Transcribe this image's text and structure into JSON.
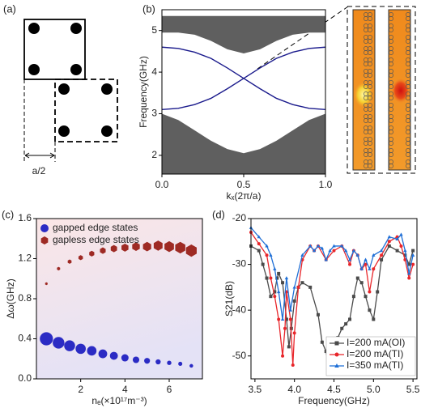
{
  "schematic": {
    "panel_label": "(a)",
    "label": "a/2"
  },
  "chart_data": [
    {
      "type": "band",
      "panel_label": "(b)",
      "xlabel": "kₓ(2π/a)",
      "ylabel": "Frequency(GHz)",
      "xlim": [
        0,
        1
      ],
      "ylim": [
        1.55,
        5.5
      ],
      "xticks": [
        {
          "value": 0,
          "label": "0.0"
        },
        0.5,
        {
          "value": 1,
          "label": "1.0"
        }
      ],
      "yticks": [
        2,
        3,
        4,
        5
      ],
      "x": [
        0,
        0.1,
        0.2,
        0.3,
        0.4,
        0.5,
        0.6,
        0.7,
        0.8,
        0.9,
        1
      ],
      "areas": [
        {
          "color": "#5f5f5f",
          "lower": [
            1.55,
            1.55,
            1.55,
            1.55,
            1.55,
            1.55,
            1.55,
            1.55,
            1.55,
            1.55,
            1.55
          ],
          "upper": [
            3.0,
            2.85,
            2.6,
            2.35,
            2.15,
            2.05,
            2.15,
            2.35,
            2.6,
            2.85,
            3.0
          ]
        },
        {
          "color": "#5f5f5f",
          "lower": [
            4.95,
            4.95,
            4.9,
            4.75,
            4.55,
            4.45,
            4.55,
            4.75,
            4.9,
            4.95,
            4.95
          ],
          "upper": [
            5.35,
            5.35,
            5.35,
            5.35,
            5.35,
            5.35,
            5.35,
            5.35,
            5.35,
            5.35,
            5.35
          ]
        }
      ],
      "lines": [
        {
          "color": "#1a1a8c",
          "values": [
            4.6,
            4.57,
            4.48,
            4.33,
            4.1,
            3.85,
            3.6,
            3.37,
            3.22,
            3.13,
            3.1
          ]
        },
        {
          "color": "#1a1a8c",
          "values": [
            3.1,
            3.13,
            3.22,
            3.37,
            3.6,
            3.85,
            4.1,
            4.33,
            4.48,
            4.57,
            4.6
          ]
        }
      ]
    },
    {
      "type": "scatter",
      "panel_label": "(c)",
      "xlabel": "nₑ(×10¹⁷m⁻³)",
      "ylabel": "Δω(GHz)",
      "xlim": [
        0,
        7.5
      ],
      "ylim": [
        0,
        1.6
      ],
      "xticks": [
        2,
        4,
        6
      ],
      "yticks": [
        {
          "value": 0,
          "label": "0.0"
        },
        0.4,
        0.8,
        1.2,
        1.6
      ],
      "legend": "upper left",
      "x": [
        0.45,
        1,
        1.5,
        2,
        2.5,
        3,
        3.5,
        4,
        4.5,
        5,
        5.5,
        6,
        6.5,
        7
      ],
      "series": [
        {
          "name": "gapped edge states",
          "color": "#2b2bc4",
          "marker": "circle",
          "values": [
            0.4,
            0.36,
            0.33,
            0.3,
            0.28,
            0.25,
            0.23,
            0.21,
            0.19,
            0.18,
            0.17,
            0.16,
            0.15,
            0.13
          ],
          "sizes": [
            9,
            8,
            7.5,
            7,
            6.5,
            6,
            5.5,
            5,
            4.5,
            4,
            3.5,
            3,
            2.8,
            2.5
          ]
        },
        {
          "name": "gapless edge states",
          "color": "#9e2a24",
          "marker": "hexagon",
          "values": [
            0.95,
            1.1,
            1.17,
            1.21,
            1.25,
            1.28,
            1.3,
            1.31,
            1.32,
            1.32,
            1.33,
            1.32,
            1.31,
            1.28
          ],
          "sizes": [
            2,
            2.5,
            3,
            3.5,
            4,
            4.5,
            5,
            5.5,
            6,
            6.5,
            7,
            7.5,
            8,
            8.5
          ]
        }
      ]
    },
    {
      "type": "line",
      "panel_label": "(d)",
      "xlabel": "Frequency(GHz)",
      "ylabel": "S21(dB)",
      "xlim": [
        3.45,
        5.55
      ],
      "ylim": [
        -55,
        -20
      ],
      "xticks": [
        3.5,
        {
          "value": 4,
          "label": "4.0"
        },
        4.5,
        {
          "value": 5,
          "label": "5.0"
        },
        5.5
      ],
      "yticks": [
        -20,
        -30,
        -40,
        -50
      ],
      "legend": "lower right",
      "series": [
        {
          "name": "I=200 mA(OI)",
          "color": "#4a4a4a",
          "marker": "square",
          "x": [
            3.45,
            3.55,
            3.6,
            3.65,
            3.7,
            3.75,
            3.78,
            3.8,
            3.85,
            3.9,
            3.93,
            3.96,
            4.0,
            4.05,
            4.1,
            4.2,
            4.3,
            4.35,
            4.4,
            4.43,
            4.45,
            4.5,
            4.55,
            4.6,
            4.65,
            4.7,
            4.75,
            4.8,
            4.85,
            4.9,
            4.95,
            5.0,
            5.05,
            5.1,
            5.2,
            5.3,
            5.4,
            5.45,
            5.5
          ],
          "values": [
            -26,
            -27,
            -30,
            -33,
            -37,
            -36,
            -33,
            -32,
            -34,
            -42,
            -48,
            -44,
            -38,
            -35,
            -34,
            -35,
            -41,
            -47,
            -49,
            -52,
            -48,
            -50,
            -46,
            -44,
            -43,
            -42,
            -37,
            -33,
            -34,
            -37,
            -40,
            -42,
            -36,
            -29,
            -26,
            -27,
            -28,
            -30,
            -27
          ]
        },
        {
          "name": "I=200 mA(TI)",
          "color": "#e8262b",
          "marker": "circle",
          "x": [
            3.45,
            3.55,
            3.65,
            3.7,
            3.75,
            3.8,
            3.85,
            3.88,
            3.9,
            3.95,
            3.98,
            4.0,
            4.05,
            4.1,
            4.2,
            4.25,
            4.3,
            4.4,
            4.5,
            4.6,
            4.7,
            4.75,
            4.8,
            4.85,
            4.9,
            4.95,
            5.0,
            5.1,
            5.2,
            5.3,
            5.35,
            5.4,
            5.45,
            5.5
          ],
          "values": [
            -23,
            -25.5,
            -28,
            -33,
            -37,
            -42,
            -50,
            -44,
            -36,
            -42,
            -52,
            -45,
            -35,
            -29,
            -26,
            -27,
            -26,
            -29,
            -27,
            -26,
            -30,
            -27,
            -28,
            -31,
            -30,
            -36,
            -31,
            -28,
            -25,
            -24,
            -26,
            -29,
            -33,
            -30
          ]
        },
        {
          "name": "I=350 mA(TI)",
          "color": "#1f6fd6",
          "marker": "triangle",
          "x": [
            3.45,
            3.55,
            3.65,
            3.7,
            3.75,
            3.8,
            3.85,
            3.9,
            3.95,
            4.0,
            4.1,
            4.2,
            4.25,
            4.3,
            4.35,
            4.4,
            4.45,
            4.5,
            4.6,
            4.65,
            4.7,
            4.75,
            4.8,
            4.85,
            4.9,
            4.95,
            5.0,
            5.1,
            5.2,
            5.3,
            5.35,
            5.4,
            5.45,
            5.5
          ],
          "values": [
            -22,
            -24,
            -26,
            -28,
            -31,
            -36,
            -42,
            -33,
            -40,
            -35,
            -28,
            -26,
            -27,
            -26,
            -26.5,
            -29,
            -27,
            -26,
            -26,
            -27,
            -29,
            -27,
            -28,
            -31,
            -29,
            -31,
            -28,
            -27,
            -24,
            -24.5,
            -23.5,
            -27,
            -32,
            -28
          ]
        }
      ]
    }
  ]
}
